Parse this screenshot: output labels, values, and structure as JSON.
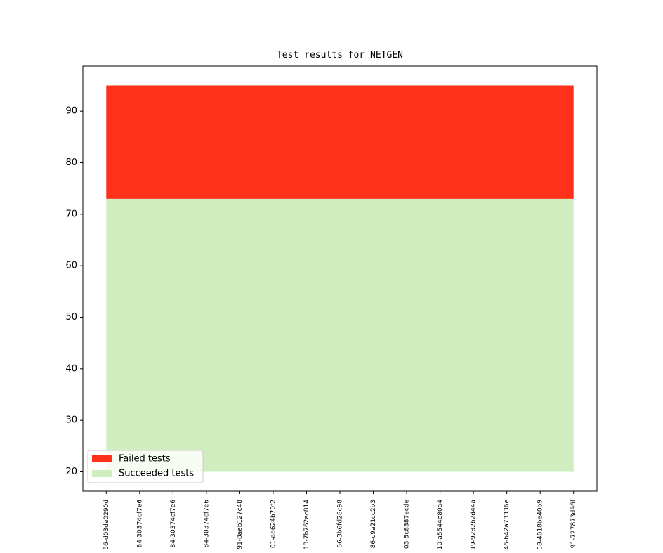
{
  "chart_data": {
    "type": "area",
    "title": "Test results for NETGEN",
    "categories": [
      "56-d03de0290d",
      "84-30374cf7e6",
      "84-30374cf7e6",
      "84-30374cf7e6",
      "91-8aeb127c48",
      "01-ab624b70f2",
      "13-7b762ac814",
      "66-3b6fd28c98",
      "86-c9a21cc2b3",
      "03-5c8387ecde",
      "10-a5544e80a4",
      "19-9282b2d44a",
      "46-b42a73336e",
      "58-4018be40b9",
      "91-727873d96f"
    ],
    "baseline": 20,
    "series": [
      {
        "name": "Succeeded tests",
        "color": "#cfedbf",
        "values": [
          53,
          53,
          53,
          53,
          53,
          53,
          53,
          53,
          53,
          53,
          53,
          53,
          53,
          53,
          53
        ]
      },
      {
        "name": "Failed tests",
        "color": "#ff311a",
        "values": [
          22,
          22,
          22,
          22,
          22,
          22,
          22,
          22,
          22,
          22,
          22,
          22,
          22,
          22,
          22
        ]
      }
    ],
    "ylim": [
      16.25,
      98.75
    ],
    "yticks": [
      20,
      30,
      40,
      50,
      60,
      70,
      80,
      90
    ],
    "legend": "lower left"
  }
}
